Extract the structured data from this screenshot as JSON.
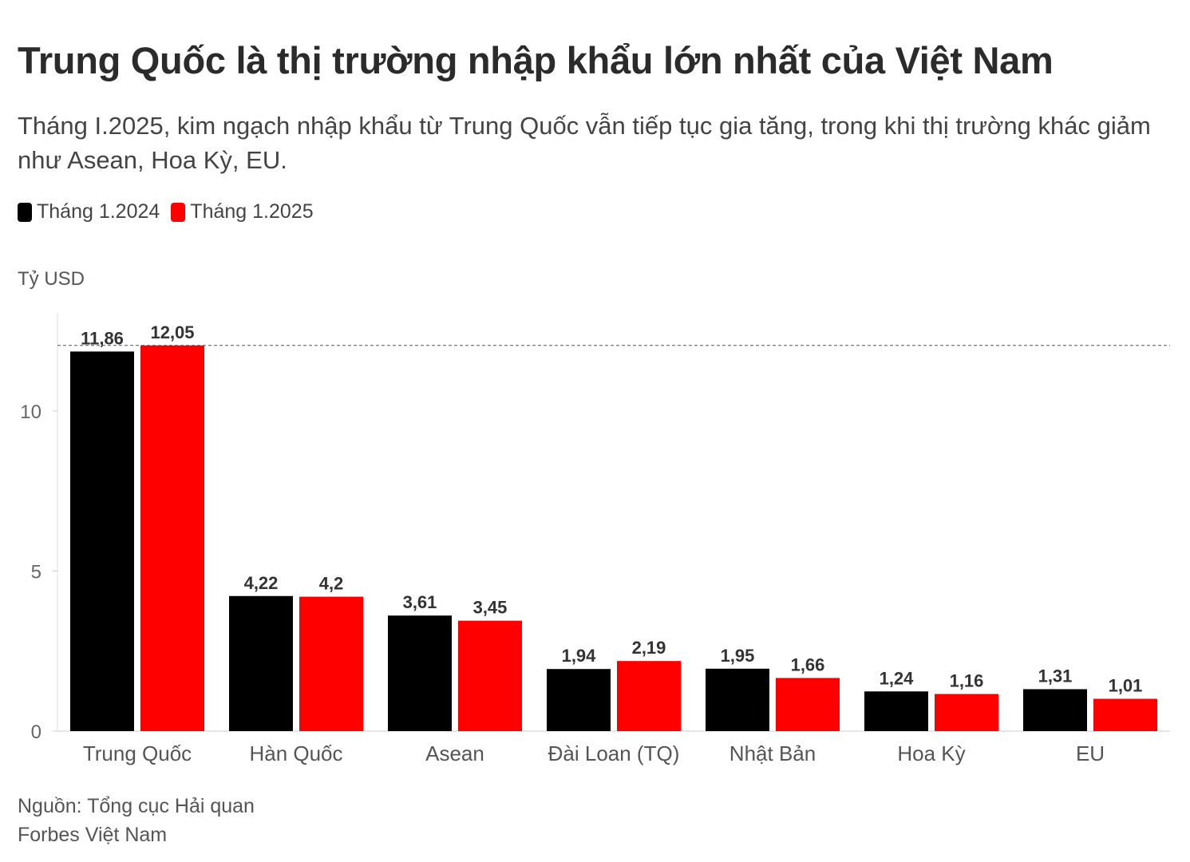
{
  "header": {
    "title": "Trung Quốc là thị trường nhập khẩu lớn nhất của Việt Nam",
    "subtitle": "Tháng I.2025, kim ngạch nhập khẩu từ Trung Quốc vẫn tiếp tục gia tăng, trong khi thị trường khác giảm như Asean, Hoa Kỳ, EU."
  },
  "legend": [
    {
      "label": "Tháng 1.2024",
      "color": "#000000"
    },
    {
      "label": "Tháng 1.2025",
      "color": "#ff0000"
    }
  ],
  "unit_label": "Tỷ USD",
  "footer": {
    "source": "Nguồn: Tổng cục Hải quan",
    "publisher": "Forbes Việt Nam"
  },
  "chart_data": {
    "type": "bar",
    "title": "Trung Quốc là thị trường nhập khẩu lớn nhất của Việt Nam",
    "ylabel": "Tỷ USD",
    "xlabel": "",
    "ylim": [
      0,
      12.05
    ],
    "yticks": [
      0,
      5,
      10
    ],
    "grid": false,
    "legend_position": "top-left",
    "reference_line": {
      "value": 12.05,
      "style": "dashed"
    },
    "categories": [
      "Trung Quốc",
      "Hàn Quốc",
      "Asean",
      "Đài Loan (TQ)",
      "Nhật Bản",
      "Hoa Kỳ",
      "EU"
    ],
    "series": [
      {
        "name": "Tháng 1.2024",
        "color": "#000000",
        "values": [
          11.86,
          4.22,
          3.61,
          1.94,
          1.95,
          1.24,
          1.31
        ],
        "labels": [
          "11,86",
          "4,22",
          "3,61",
          "1,94",
          "1,95",
          "1,24",
          "1,31"
        ]
      },
      {
        "name": "Tháng 1.2025",
        "color": "#ff0000",
        "values": [
          12.05,
          4.2,
          3.45,
          2.19,
          1.66,
          1.16,
          1.01
        ],
        "labels": [
          "12,05",
          "4,2",
          "3,45",
          "2,19",
          "1,66",
          "1,16",
          "1,01"
        ]
      }
    ]
  }
}
